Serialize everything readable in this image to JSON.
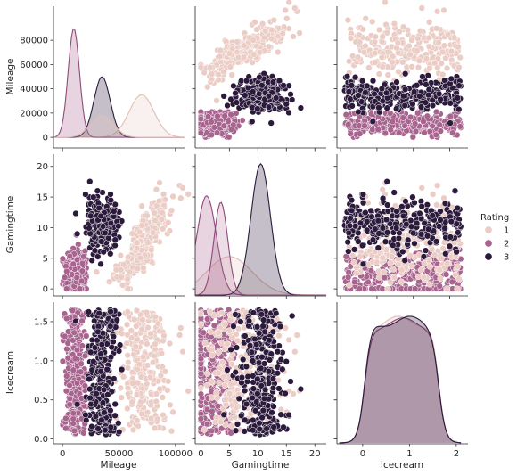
{
  "chart_data": {
    "type": "pairplot",
    "variables": [
      "Mileage",
      "Gamingtime",
      "Icecream"
    ],
    "hue": "Rating",
    "legend": {
      "title": "Rating",
      "placement": "right",
      "entries": [
        {
          "label": "1",
          "color": "#ebcdc6"
        },
        {
          "label": "2",
          "color": "#a8648f"
        },
        {
          "label": "3",
          "color": "#2b1a3c"
        }
      ]
    },
    "axis_ranges": {
      "Mileage": [
        -8000,
        108000
      ],
      "Gamingtime": [
        -1,
        22
      ],
      "Icecream": [
        -0.05,
        1.75
      ],
      "Icecream_diag": [
        -0.55,
        2.25
      ]
    },
    "ticks": {
      "Mileage_y": [
        0,
        20000,
        40000,
        60000,
        80000
      ],
      "Mileage_x": [
        0,
        50000,
        100000
      ],
      "Gamingtime": [
        0,
        5,
        10,
        15,
        20
      ],
      "Icecream_y": [
        0.0,
        0.5,
        1.0,
        1.5
      ],
      "Icecream_x": [
        0,
        1,
        2
      ]
    },
    "tick_labels": {
      "Mileage_y": [
        "0",
        "20000",
        "40000",
        "60000",
        "80000"
      ],
      "Mileage_x": [
        "0",
        "50000",
        "100000"
      ],
      "Gamingtime": [
        "0",
        "5",
        "10",
        "15",
        "20"
      ],
      "Icecream_y": [
        "0.0",
        "0.5",
        "1.0",
        "1.5"
      ],
      "Icecream_x": [
        "0",
        "1",
        "2"
      ]
    },
    "groups": [
      {
        "rating": "1",
        "color": "#ebcdc6",
        "mileage": [
          72000,
          12000
        ],
        "gamingtime": [
          6.5,
          4.5
        ],
        "icecream": [
          0.1,
          1.65
        ]
      },
      {
        "rating": "2",
        "color": "#a8648f",
        "mileage": [
          11000,
          5000
        ],
        "gamingtime": [
          2.5,
          2.0
        ],
        "icecream": [
          0.05,
          1.65
        ]
      },
      {
        "rating": "3",
        "color": "#2b1a3c",
        "mileage": [
          35000,
          7000
        ],
        "gamingtime": [
          10.5,
          2.0
        ],
        "icecream": [
          0.05,
          1.65
        ]
      }
    ],
    "diagonal_kde": {
      "Mileage": [
        {
          "rating": "1",
          "peak_x": 70000,
          "peak": 35000
        },
        {
          "rating": "2",
          "peak_x": 10000,
          "peak": 90000
        },
        {
          "rating": "3",
          "peak_x": 35000,
          "peak": 50000
        }
      ],
      "Gamingtime": [
        {
          "rating": "1",
          "peak_x": 5,
          "peak": 6
        },
        {
          "rating": "2",
          "peak_x": 1,
          "peak": 15.5
        },
        {
          "rating": "3",
          "peak_x": 10.5,
          "peak": 20.5
        }
      ],
      "Icecream": [
        {
          "rating": "1",
          "peak_x": 0.5,
          "peak": 1.6
        },
        {
          "rating": "2",
          "peak_x": 0.6,
          "peak": 1.58
        },
        {
          "rating": "3",
          "peak_x": 0.75,
          "peak": 1.6
        }
      ]
    }
  }
}
